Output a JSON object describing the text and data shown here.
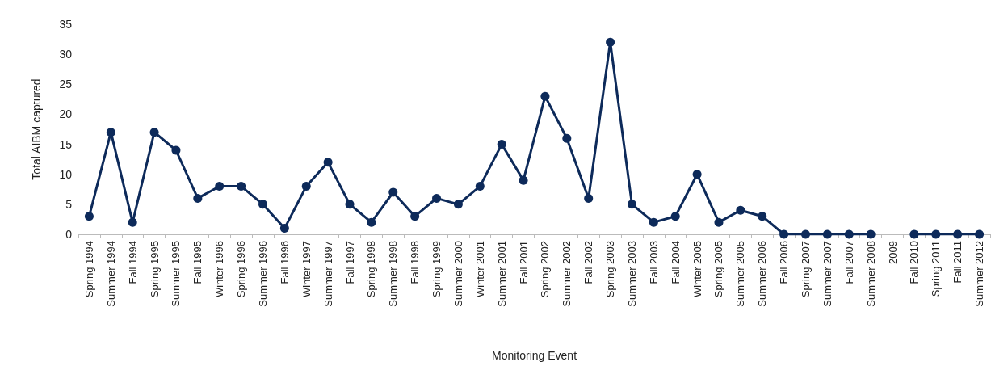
{
  "chart_data": {
    "type": "line",
    "xlabel": "Monitoring Event",
    "ylabel": "Total AIBM captured",
    "categories": [
      "Spring 1994",
      "Summer 1994",
      "Fall 1994",
      "Spring 1995",
      "Summer 1995",
      "Fall 1995",
      "Winter 1996",
      "Spring 1996",
      "Summer 1996",
      "Fall 1996",
      "Winter 1997",
      "Summer 1997",
      "Fall 1997",
      "Spring 1998",
      "Summer 1998",
      "Fall 1998",
      "Spring 1999",
      "Summer 2000",
      "Winter 2001",
      "Summer 2001",
      "Fall 2001",
      "Spring 2002",
      "Summer 2002",
      "Fall 2002",
      "Spring 2003",
      "Summer 2003",
      "Fall 2003",
      "Fall 2004",
      "Winter 2005",
      "Spring 2005",
      "Summer 2005",
      "Summer 2006",
      "Fall 2006",
      "Spring 2007",
      "Summer 2007",
      "Fall 2007",
      "Summer 2008",
      "2009",
      "Fall 2010",
      "Spring 2011",
      "Fall 2011",
      "Summer 2012"
    ],
    "series": [
      {
        "color": "#0d2a5a",
        "values": [
          3,
          17,
          2,
          17,
          14,
          6,
          8,
          8,
          5,
          1,
          8,
          12,
          5,
          2,
          7,
          3,
          6,
          5,
          8,
          15,
          9,
          23,
          16,
          6,
          32,
          5,
          2,
          3,
          10,
          2,
          4,
          3,
          0,
          0,
          0,
          0,
          0,
          null,
          0,
          0,
          0,
          0
        ]
      }
    ],
    "ylim": [
      0,
      35
    ],
    "yticks": [
      0,
      5,
      10,
      15,
      20,
      25,
      30,
      35
    ],
    "marker": "circle",
    "line_style": "solid"
  }
}
